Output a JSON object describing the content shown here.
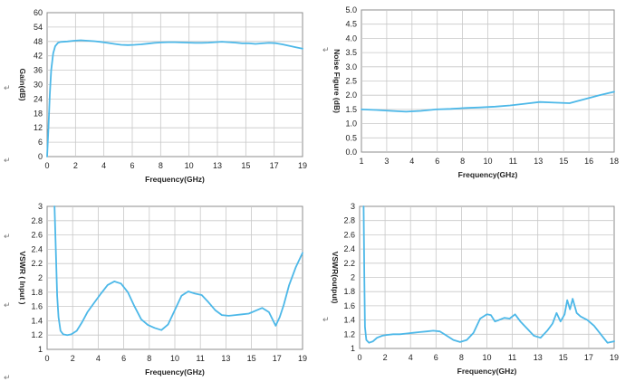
{
  "paragraph_mark": "↵",
  "chart_data": [
    {
      "type": "line",
      "xlabel": "Frequency(GHz)",
      "ylabel": "Gain(dB)",
      "xlim": [
        0,
        19
      ],
      "ylim": [
        0,
        60
      ],
      "xticks": [
        "0",
        "2",
        "4",
        "6",
        "8",
        "10",
        "13",
        "15",
        "17",
        "19"
      ],
      "yticks": [
        "0",
        "6",
        "12",
        "18",
        "24",
        "30",
        "36",
        "42",
        "48",
        "54",
        "60"
      ],
      "grid": true,
      "series": [
        {
          "color": "#4db8e8",
          "x": [
            0,
            0.1,
            0.2,
            0.3,
            0.45,
            0.6,
            0.8,
            1.0,
            1.5,
            2,
            2.5,
            3,
            3.5,
            4,
            4.5,
            5,
            5.5,
            6,
            6.5,
            7,
            7.5,
            8,
            8.5,
            9,
            9.5,
            10,
            10.5,
            11,
            11.5,
            12,
            12.5,
            13,
            13.5,
            14,
            14.5,
            15,
            15.5,
            16,
            16.5,
            17,
            17.5,
            18,
            18.5,
            19
          ],
          "y": [
            0,
            12,
            26,
            36,
            43,
            46,
            47.4,
            47.8,
            48.0,
            48.3,
            48.5,
            48.3,
            48.1,
            47.8,
            47.4,
            47.0,
            46.6,
            46.5,
            46.6,
            46.8,
            47.1,
            47.4,
            47.6,
            47.7,
            47.7,
            47.6,
            47.5,
            47.4,
            47.4,
            47.5,
            47.7,
            47.9,
            47.7,
            47.5,
            47.2,
            47.2,
            47.0,
            47.2,
            47.4,
            47.3,
            46.8,
            46.2,
            45.6,
            45.0
          ]
        }
      ]
    },
    {
      "type": "line",
      "xlabel": "Frequency(GHz)",
      "ylabel": "Noise Figure (dB)",
      "xlim": [
        1,
        18
      ],
      "ylim": [
        0,
        5
      ],
      "xticks": [
        "1",
        "3",
        "4",
        "6",
        "8",
        "10",
        "11",
        "13",
        "15",
        "16",
        "18"
      ],
      "yticks": [
        "0.0",
        "0.5",
        "1.0",
        "1.5",
        "2.0",
        "2.5",
        "3.0",
        "3.5",
        "4.0",
        "4.5",
        "5.0"
      ],
      "grid": true,
      "series": [
        {
          "color": "#4db8e8",
          "x": [
            1,
            2,
            3,
            4,
            5,
            6,
            7,
            8,
            9,
            10,
            11,
            12,
            13,
            14,
            15,
            16,
            17,
            18
          ],
          "y": [
            1.5,
            1.48,
            1.45,
            1.42,
            1.45,
            1.5,
            1.52,
            1.55,
            1.57,
            1.6,
            1.64,
            1.7,
            1.76,
            1.74,
            1.72,
            1.86,
            2.0,
            2.12
          ]
        }
      ]
    },
    {
      "type": "line",
      "xlabel": "Frequency(GHz)",
      "ylabel": "VSWR ( Input )",
      "xlim": [
        0,
        19
      ],
      "ylim": [
        1,
        3
      ],
      "xticks": [
        "0",
        "2",
        "4",
        "6",
        "8",
        "10",
        "11",
        "13",
        "15",
        "17",
        "19"
      ],
      "yticks": [
        "1",
        "1.2",
        "1.4",
        "1.6",
        "1.8",
        "2",
        "2.2",
        "2.4",
        "2.6",
        "2.8",
        "3"
      ],
      "grid": true,
      "series": [
        {
          "color": "#4db8e8",
          "x": [
            0.55,
            0.65,
            0.75,
            0.85,
            1.0,
            1.2,
            1.5,
            1.8,
            2.2,
            2.6,
            3.0,
            3.5,
            4.0,
            4.5,
            5.0,
            5.5,
            6.0,
            6.5,
            7.0,
            7.5,
            8.0,
            8.5,
            9.0,
            9.5,
            10.0,
            10.5,
            11.0,
            11.5,
            12.0,
            12.5,
            13.0,
            13.5,
            14.0,
            14.5,
            15.0,
            15.5,
            16.0,
            16.5,
            17.0,
            17.3,
            17.6,
            18.0,
            18.5,
            19.0
          ],
          "y": [
            3.0,
            2.4,
            1.75,
            1.45,
            1.26,
            1.21,
            1.2,
            1.21,
            1.26,
            1.38,
            1.52,
            1.65,
            1.78,
            1.9,
            1.95,
            1.92,
            1.8,
            1.6,
            1.42,
            1.34,
            1.3,
            1.27,
            1.35,
            1.55,
            1.75,
            1.81,
            1.78,
            1.76,
            1.66,
            1.55,
            1.48,
            1.47,
            1.48,
            1.49,
            1.5,
            1.54,
            1.58,
            1.52,
            1.33,
            1.45,
            1.62,
            1.9,
            2.15,
            2.35
          ]
        }
      ]
    },
    {
      "type": "line",
      "xlabel": "Frequency(GHz)",
      "ylabel": "VSWR(output)",
      "xlim": [
        0,
        19
      ],
      "ylim": [
        1,
        3
      ],
      "xticks": [
        "0",
        "2",
        "4",
        "6",
        "8",
        "10",
        "11",
        "13",
        "15",
        "17",
        "19"
      ],
      "yticks": [
        "1",
        "1.2",
        "1.4",
        "1.6",
        "1.8",
        "2",
        "2.2",
        "2.4",
        "2.6",
        "2.8",
        "3"
      ],
      "grid": true,
      "series": [
        {
          "color": "#4db8e8",
          "x": [
            0.3,
            0.35,
            0.4,
            0.5,
            0.7,
            1.0,
            1.3,
            1.7,
            2.0,
            2.5,
            3.0,
            3.5,
            4.0,
            4.5,
            5.0,
            5.5,
            6.0,
            6.5,
            7.0,
            7.5,
            8.0,
            8.5,
            9.0,
            9.5,
            9.8,
            10.1,
            10.4,
            10.8,
            11.2,
            11.6,
            12.0,
            12.5,
            13.0,
            13.5,
            14.0,
            14.4,
            14.7,
            15.0,
            15.3,
            15.5,
            15.7,
            15.9,
            16.2,
            16.5,
            17.0,
            17.5,
            18.0,
            18.5,
            19.0
          ],
          "y": [
            3.0,
            2.0,
            1.3,
            1.12,
            1.08,
            1.1,
            1.15,
            1.18,
            1.19,
            1.2,
            1.2,
            1.21,
            1.22,
            1.23,
            1.24,
            1.25,
            1.24,
            1.18,
            1.12,
            1.09,
            1.12,
            1.22,
            1.42,
            1.48,
            1.47,
            1.38,
            1.4,
            1.43,
            1.42,
            1.48,
            1.38,
            1.28,
            1.18,
            1.15,
            1.25,
            1.35,
            1.5,
            1.38,
            1.48,
            1.68,
            1.55,
            1.7,
            1.5,
            1.45,
            1.4,
            1.32,
            1.2,
            1.08,
            1.1
          ]
        }
      ]
    }
  ]
}
